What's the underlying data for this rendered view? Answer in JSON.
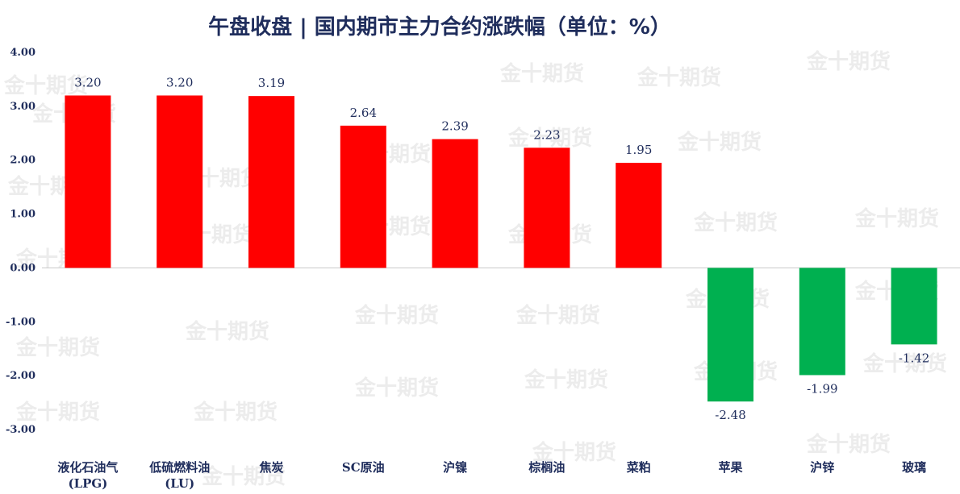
{
  "chart_data": {
    "type": "bar",
    "title": "午盘收盘 | 国内期市主力合约涨跌幅（单位：%）",
    "categories": [
      [
        "液化石油气",
        "(LPG)"
      ],
      [
        "低硫燃料油",
        "(LU)"
      ],
      [
        "焦炭"
      ],
      [
        "SC原油"
      ],
      [
        "沪镍"
      ],
      [
        "棕榈油"
      ],
      [
        "菜粕"
      ],
      [
        "苹果"
      ],
      [
        "沪锌"
      ],
      [
        "玻璃"
      ]
    ],
    "values": [
      3.2,
      3.2,
      3.19,
      2.64,
      2.39,
      2.23,
      1.95,
      -2.48,
      -1.99,
      -1.42
    ],
    "value_labels": [
      "3.20",
      "3.20",
      "3.19",
      "2.64",
      "2.39",
      "2.23",
      "1.95",
      "-2.48",
      "-1.99",
      "-1.42"
    ],
    "ylim": [
      -3.0,
      4.0
    ],
    "yticks": [
      4,
      3,
      2,
      1,
      0,
      -1,
      -2,
      -3
    ],
    "ytick_labels": [
      "4.00",
      "3.00",
      "2.00",
      "1.00",
      "0.00",
      "-1.00",
      "-2.00",
      "-3.00"
    ],
    "grid": false,
    "positive_color": "#ff0000",
    "negative_color": "#00b050",
    "xlabel": "",
    "ylabel": ""
  },
  "watermark": {
    "text": "金十期货"
  }
}
